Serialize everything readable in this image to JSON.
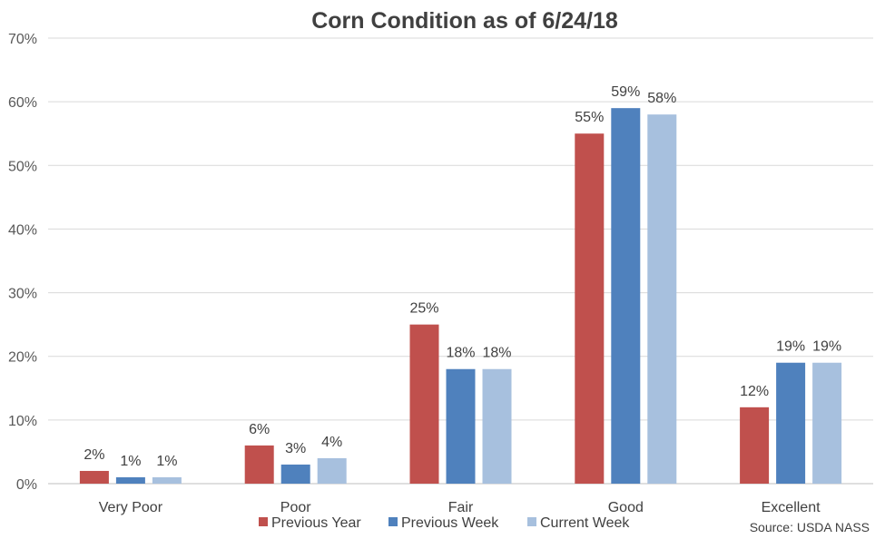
{
  "chart_data": {
    "type": "bar",
    "title": "Corn Condition as of 6/24/18",
    "categories": [
      "Very Poor",
      "Poor",
      "Fair",
      "Good",
      "Excellent"
    ],
    "series": [
      {
        "name": "Previous Year",
        "color": "#c0504d",
        "values": [
          2,
          6,
          25,
          55,
          12
        ]
      },
      {
        "name": "Previous Week",
        "color": "#4f81bd",
        "values": [
          1,
          3,
          18,
          59,
          19
        ]
      },
      {
        "name": "Current Week",
        "color": "#a7c0de",
        "values": [
          1,
          4,
          18,
          58,
          19
        ]
      }
    ],
    "value_suffix": "%",
    "ylim": [
      0,
      70
    ],
    "yticks": [
      "0%",
      "10%",
      "20%",
      "30%",
      "40%",
      "50%",
      "60%",
      "70%"
    ],
    "grid": true,
    "legend_position": "bottom-center",
    "xlabel": "",
    "ylabel": ""
  },
  "source_note": "Source: USDA NASS"
}
